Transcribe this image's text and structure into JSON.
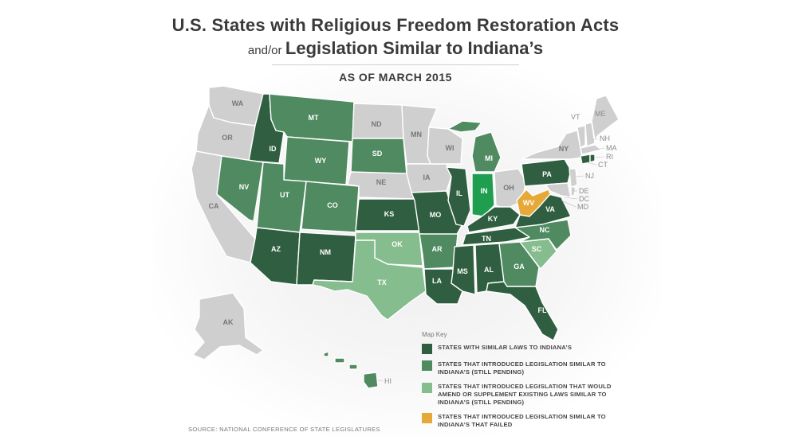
{
  "title": {
    "line1": "U.S. States with Religious Freedom Restoration Acts",
    "line2_prefix": "and/or",
    "line2_main": "Legislation Similar to Indiana’s",
    "subtitle": "AS OF MARCH 2015"
  },
  "colors": {
    "similar": "#2f5f40",
    "pending": "#4f8a60",
    "amend": "#86bd8f",
    "failed": "#e6a837",
    "none": "#cfcfcf",
    "indiana": "#1f9e4f"
  },
  "states": {
    "WA": "WA",
    "OR": "OR",
    "CA": "CA",
    "ID": "ID",
    "NV": "NV",
    "MT": "MT",
    "WY": "WY",
    "UT": "UT",
    "AZ": "AZ",
    "CO": "CO",
    "NM": "NM",
    "ND": "ND",
    "SD": "SD",
    "NE": "NE",
    "KS": "KS",
    "OK": "OK",
    "TX": "TX",
    "MN": "MN",
    "IA": "IA",
    "MO": "MO",
    "AR": "AR",
    "LA": "LA",
    "WI": "WI",
    "IL": "IL",
    "MS": "MS",
    "MI": "MI",
    "IN": "IN",
    "KY": "KY",
    "TN": "TN",
    "AL": "AL",
    "OH": "OH",
    "GA": "GA",
    "FL": "FL",
    "SC": "SC",
    "NC": "NC",
    "VA": "VA",
    "WV": "WV",
    "PA": "PA",
    "NY": "NY",
    "VT": "VT",
    "NH": "NH",
    "ME": "ME",
    "MA": "MA",
    "RI": "RI",
    "CT": "CT",
    "NJ": "NJ",
    "DE": "DE",
    "DC": "DC",
    "MD": "MD",
    "AK": "AK",
    "HI": "HI"
  },
  "key": {
    "title": "Map Key",
    "items": [
      {
        "label": "STATES WITH SIMILAR LAWS TO INDIANA’S",
        "color": "#2f5f40"
      },
      {
        "label": "STATES THAT INTRODUCED LEGISLATION SIMILAR TO INDIANA’S (STILL PENDING)",
        "color": "#4f8a60"
      },
      {
        "label": "STATES THAT INTRODUCED LEGISLATION THAT WOULD AMEND OR SUPPLEMENT EXISTING LAWS SIMILAR TO INDIANA’S (STILL PENDING)",
        "color": "#86bd8f"
      },
      {
        "label": "STATES THAT INTRODUCED LEGISLATION SIMILAR TO INDIANA’S THAT FAILED",
        "color": "#e6a837"
      }
    ]
  },
  "source": "SOURCE: NATIONAL CONFERENCE OF STATE LEGISLATURES"
}
